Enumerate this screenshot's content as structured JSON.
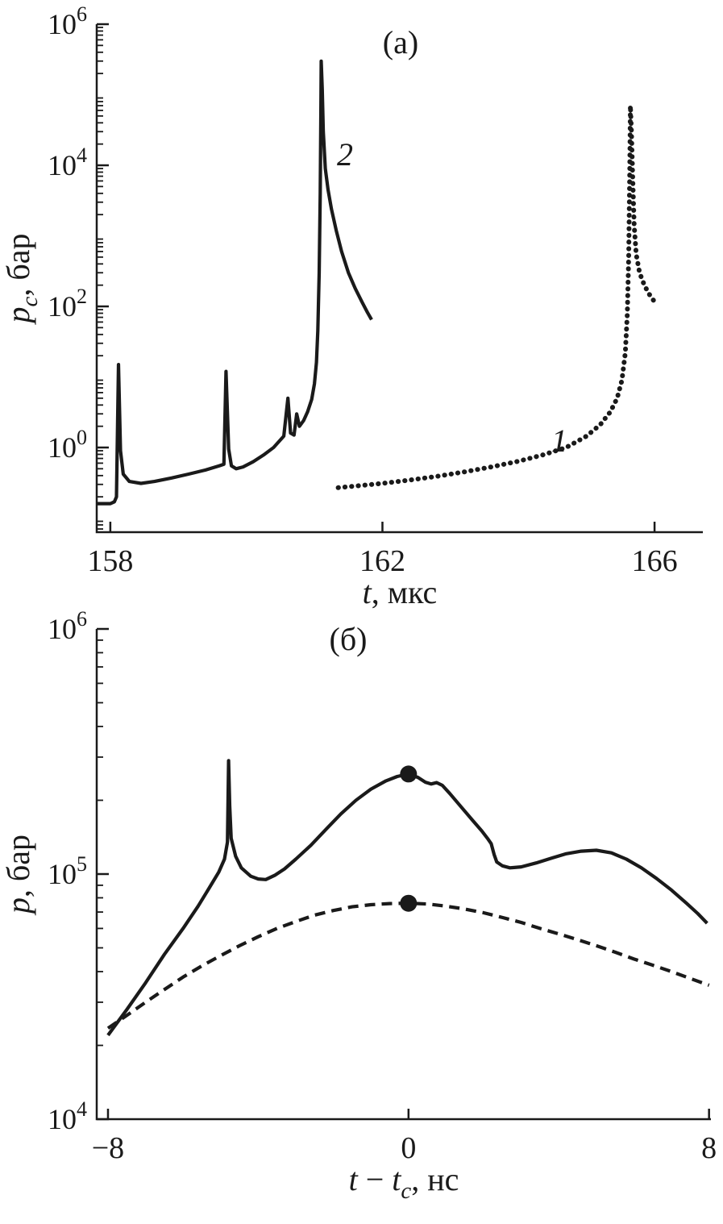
{
  "figure": {
    "background": "#ffffff",
    "line_color": "#1a1a1a"
  },
  "chart_data": [
    {
      "type": "line",
      "panel": "a",
      "title": "(а)",
      "xlabel_text": "t, мкс",
      "ylabel_text": "p_c, бар",
      "xlabel_segments": [
        {
          "t": "t",
          "it": true
        },
        {
          "t": ", мкс"
        }
      ],
      "ylabel_segments": [
        {
          "t": "p",
          "it": true
        },
        {
          "t": "c",
          "it": true,
          "sub": true
        },
        {
          "t": ", бар"
        }
      ],
      "xlim": [
        157.8,
        166.71
      ],
      "x_tick_values": [
        158,
        162,
        166
      ],
      "x_tick_labels": [
        "158",
        "162",
        "166"
      ],
      "y_scale": "log",
      "ylim_exp": [
        -1.2,
        6.0
      ],
      "y_tick_exps": [
        0,
        2,
        4,
        6
      ],
      "grid": false,
      "legend": "inline-curve-labels",
      "series": [
        {
          "name": "2",
          "style": "solid",
          "label": "2",
          "label_pos": [
            161.45,
            10000
          ],
          "points": [
            [
              157.8,
              0.16
            ],
            [
              158.0,
              0.16
            ],
            [
              158.06,
              0.17
            ],
            [
              158.09,
              0.2
            ],
            [
              158.12,
              15
            ],
            [
              158.15,
              0.9
            ],
            [
              158.19,
              0.42
            ],
            [
              158.28,
              0.33
            ],
            [
              158.45,
              0.31
            ],
            [
              158.65,
              0.33
            ],
            [
              158.9,
              0.37
            ],
            [
              159.15,
              0.42
            ],
            [
              159.4,
              0.48
            ],
            [
              159.6,
              0.55
            ],
            [
              159.67,
              0.58
            ],
            [
              159.7,
              12
            ],
            [
              159.74,
              0.95
            ],
            [
              159.78,
              0.55
            ],
            [
              159.85,
              0.5
            ],
            [
              159.95,
              0.53
            ],
            [
              160.1,
              0.63
            ],
            [
              160.25,
              0.78
            ],
            [
              160.4,
              1.0
            ],
            [
              160.55,
              1.45
            ],
            [
              160.61,
              5.0
            ],
            [
              160.65,
              1.6
            ],
            [
              160.7,
              1.5
            ],
            [
              160.74,
              3.0
            ],
            [
              160.78,
              2.0
            ],
            [
              160.84,
              2.4
            ],
            [
              160.9,
              3.2
            ],
            [
              160.96,
              4.8
            ],
            [
              161.0,
              8
            ],
            [
              161.03,
              16
            ],
            [
              161.05,
              45
            ],
            [
              161.07,
              300
            ],
            [
              161.085,
              4000
            ],
            [
              161.095,
              60000
            ],
            [
              161.1,
              300000
            ],
            [
              161.115,
              120000
            ],
            [
              161.13,
              30000
            ],
            [
              161.16,
              9000
            ],
            [
              161.2,
              4500
            ],
            [
              161.25,
              2400
            ],
            [
              161.32,
              1200
            ],
            [
              161.4,
              600
            ],
            [
              161.5,
              300
            ],
            [
              161.6,
              180
            ],
            [
              161.7,
              115
            ],
            [
              161.78,
              82
            ],
            [
              161.84,
              65
            ]
          ]
        },
        {
          "name": "1",
          "style": "dotted",
          "label": "1",
          "label_pos": [
            164.6,
            0.88
          ],
          "points": [
            [
              161.35,
              0.27
            ],
            [
              161.7,
              0.29
            ],
            [
              162.0,
              0.31
            ],
            [
              162.4,
              0.345
            ],
            [
              162.8,
              0.39
            ],
            [
              163.2,
              0.45
            ],
            [
              163.6,
              0.53
            ],
            [
              164.0,
              0.64
            ],
            [
              164.35,
              0.78
            ],
            [
              164.7,
              1.0
            ],
            [
              165.0,
              1.45
            ],
            [
              165.2,
              2.1
            ],
            [
              165.35,
              3.2
            ],
            [
              165.45,
              5.0
            ],
            [
              165.52,
              9
            ],
            [
              165.57,
              22
            ],
            [
              165.6,
              80
            ],
            [
              165.62,
              500
            ],
            [
              165.635,
              8000
            ],
            [
              165.645,
              70000
            ],
            [
              165.66,
              30000
            ],
            [
              165.68,
              6000
            ],
            [
              165.7,
              1400
            ],
            [
              165.73,
              550
            ],
            [
              165.78,
              300
            ],
            [
              165.85,
              200
            ],
            [
              165.92,
              150
            ],
            [
              165.99,
              120
            ]
          ]
        }
      ],
      "markers": []
    },
    {
      "type": "line",
      "panel": "b",
      "title": "(б)",
      "xlabel_text": "t − t_c, нс",
      "ylabel_text": "p, бар",
      "xlabel_segments": [
        {
          "t": "t",
          "it": true
        },
        {
          "t": " − "
        },
        {
          "t": "t",
          "it": true
        },
        {
          "t": "c",
          "it": true,
          "sub": true
        },
        {
          "t": ", нс"
        }
      ],
      "ylabel_segments": [
        {
          "t": "p",
          "it": true
        },
        {
          "t": ", бар"
        }
      ],
      "xlim": [
        -8.3,
        8.05
      ],
      "x_tick_values": [
        -8,
        0,
        8
      ],
      "x_tick_labels": [
        "−8",
        "0",
        "8"
      ],
      "y_scale": "log",
      "ylim_exp": [
        4.0,
        6.0
      ],
      "y_tick_exps": [
        4,
        5,
        6
      ],
      "grid": false,
      "legend": "none",
      "series": [
        {
          "name": "solid",
          "style": "solid",
          "label": "",
          "label_pos": null,
          "points": [
            [
              -8.0,
              22000
            ],
            [
              -7.5,
              28000
            ],
            [
              -7.0,
              36000
            ],
            [
              -6.5,
              47000
            ],
            [
              -6.0,
              60000
            ],
            [
              -5.6,
              74000
            ],
            [
              -5.3,
              88000
            ],
            [
              -5.05,
              102000
            ],
            [
              -4.9,
              115000
            ],
            [
              -4.82,
              135000
            ],
            [
              -4.79,
              290000
            ],
            [
              -4.76,
              190000
            ],
            [
              -4.72,
              140000
            ],
            [
              -4.6,
              118000
            ],
            [
              -4.45,
              106000
            ],
            [
              -4.2,
              98000
            ],
            [
              -4.0,
              95500
            ],
            [
              -3.8,
              95000
            ],
            [
              -3.55,
              99000
            ],
            [
              -3.3,
              105000
            ],
            [
              -3.0,
              115000
            ],
            [
              -2.6,
              131000
            ],
            [
              -2.2,
              152000
            ],
            [
              -1.8,
              176000
            ],
            [
              -1.4,
              200000
            ],
            [
              -1.0,
              222000
            ],
            [
              -0.6,
              240000
            ],
            [
              -0.3,
              250000
            ],
            [
              0.0,
              256000
            ],
            [
              0.25,
              248000
            ],
            [
              0.45,
              237000
            ],
            [
              0.6,
              233000
            ],
            [
              0.75,
              236000
            ],
            [
              0.9,
              230000
            ],
            [
              1.1,
              213000
            ],
            [
              1.4,
              188000
            ],
            [
              1.7,
              166000
            ],
            [
              1.95,
              150000
            ],
            [
              2.1,
              140000
            ],
            [
              2.2,
              133000
            ],
            [
              2.28,
              120000
            ],
            [
              2.35,
              112000
            ],
            [
              2.5,
              108000
            ],
            [
              2.7,
              106000
            ],
            [
              3.0,
              107000
            ],
            [
              3.4,
              111000
            ],
            [
              3.8,
              116000
            ],
            [
              4.2,
              121000
            ],
            [
              4.6,
              124000
            ],
            [
              5.0,
              125000
            ],
            [
              5.4,
              122000
            ],
            [
              5.8,
              115000
            ],
            [
              6.2,
              106000
            ],
            [
              6.6,
              96000
            ],
            [
              7.0,
              86000
            ],
            [
              7.4,
              76000
            ],
            [
              7.7,
              69000
            ],
            [
              7.95,
              63000
            ]
          ]
        },
        {
          "name": "dashed",
          "style": "dashed",
          "label": "",
          "label_pos": null,
          "points": [
            [
              -8.0,
              23500
            ],
            [
              -7.5,
              26500
            ],
            [
              -7.0,
              30000
            ],
            [
              -6.5,
              33800
            ],
            [
              -6.0,
              38000
            ],
            [
              -5.5,
              42200
            ],
            [
              -5.0,
              46500
            ],
            [
              -4.5,
              51000
            ],
            [
              -4.0,
              55500
            ],
            [
              -3.5,
              60000
            ],
            [
              -3.0,
              64000
            ],
            [
              -2.5,
              68000
            ],
            [
              -2.0,
              71000
            ],
            [
              -1.5,
              73500
            ],
            [
              -1.0,
              75000
            ],
            [
              -0.5,
              75800
            ],
            [
              0.0,
              76000
            ],
            [
              0.5,
              75500
            ],
            [
              1.0,
              74000
            ],
            [
              1.5,
              72000
            ],
            [
              2.0,
              69500
            ],
            [
              2.5,
              66500
            ],
            [
              3.0,
              63500
            ],
            [
              3.5,
              60000
            ],
            [
              4.0,
              57000
            ],
            [
              4.5,
              54000
            ],
            [
              5.0,
              51000
            ],
            [
              5.5,
              48000
            ],
            [
              6.0,
              45000
            ],
            [
              6.5,
              42500
            ],
            [
              7.0,
              40000
            ],
            [
              7.5,
              37500
            ],
            [
              8.0,
              35200
            ]
          ]
        }
      ],
      "markers": [
        [
          0,
          256000
        ],
        [
          0,
          76000
        ]
      ]
    }
  ]
}
